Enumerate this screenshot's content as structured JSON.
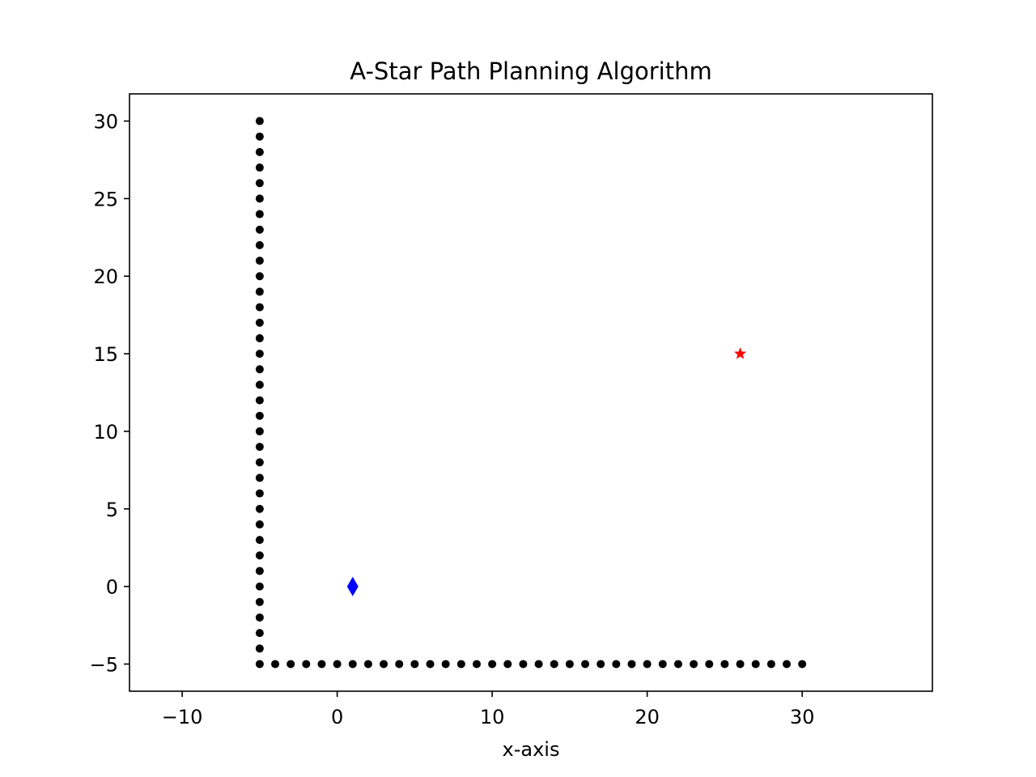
{
  "chart_data": {
    "type": "scatter",
    "title": "A-Star Path Planning Algorithm",
    "xlabel": "x-axis",
    "ylabel": "",
    "xlim": [
      -13.4,
      38.4
    ],
    "ylim": [
      -6.75,
      31.75
    ],
    "x_ticks": [
      -10,
      0,
      10,
      20,
      30
    ],
    "y_ticks": [
      -5,
      0,
      5,
      10,
      15,
      20,
      25,
      30
    ],
    "x_tick_labels": [
      "−10",
      "0",
      "10",
      "20",
      "30"
    ],
    "y_tick_labels": [
      "−5",
      "0",
      "5",
      "10",
      "15",
      "20",
      "25",
      "30"
    ],
    "grid": false,
    "series": [
      {
        "role": "obstacles",
        "marker": "circle",
        "color": "#000000",
        "points": [
          [
            -5,
            -5
          ],
          [
            -5,
            -4
          ],
          [
            -5,
            -3
          ],
          [
            -5,
            -2
          ],
          [
            -5,
            -1
          ],
          [
            -5,
            0
          ],
          [
            -5,
            1
          ],
          [
            -5,
            2
          ],
          [
            -5,
            3
          ],
          [
            -5,
            4
          ],
          [
            -5,
            5
          ],
          [
            -5,
            6
          ],
          [
            -5,
            7
          ],
          [
            -5,
            8
          ],
          [
            -5,
            9
          ],
          [
            -5,
            10
          ],
          [
            -5,
            11
          ],
          [
            -5,
            12
          ],
          [
            -5,
            13
          ],
          [
            -5,
            14
          ],
          [
            -5,
            15
          ],
          [
            -5,
            16
          ],
          [
            -5,
            17
          ],
          [
            -5,
            18
          ],
          [
            -5,
            19
          ],
          [
            -5,
            20
          ],
          [
            -5,
            21
          ],
          [
            -5,
            22
          ],
          [
            -5,
            23
          ],
          [
            -5,
            24
          ],
          [
            -5,
            25
          ],
          [
            -5,
            26
          ],
          [
            -5,
            27
          ],
          [
            -5,
            28
          ],
          [
            -5,
            29
          ],
          [
            -5,
            30
          ],
          [
            -4,
            -5
          ],
          [
            -3,
            -5
          ],
          [
            -2,
            -5
          ],
          [
            -1,
            -5
          ],
          [
            0,
            -5
          ],
          [
            1,
            -5
          ],
          [
            2,
            -5
          ],
          [
            3,
            -5
          ],
          [
            4,
            -5
          ],
          [
            5,
            -5
          ],
          [
            6,
            -5
          ],
          [
            7,
            -5
          ],
          [
            8,
            -5
          ],
          [
            9,
            -5
          ],
          [
            10,
            -5
          ],
          [
            11,
            -5
          ],
          [
            12,
            -5
          ],
          [
            13,
            -5
          ],
          [
            14,
            -5
          ],
          [
            15,
            -5
          ],
          [
            16,
            -5
          ],
          [
            17,
            -5
          ],
          [
            18,
            -5
          ],
          [
            19,
            -5
          ],
          [
            20,
            -5
          ],
          [
            21,
            -5
          ],
          [
            22,
            -5
          ],
          [
            23,
            -5
          ],
          [
            24,
            -5
          ],
          [
            25,
            -5
          ],
          [
            26,
            -5
          ],
          [
            27,
            -5
          ],
          [
            28,
            -5
          ],
          [
            29,
            -5
          ],
          [
            30,
            -5
          ]
        ]
      },
      {
        "role": "start",
        "marker": "diamond",
        "color": "#0000ff",
        "points": [
          [
            1,
            0
          ]
        ]
      },
      {
        "role": "goal",
        "marker": "star",
        "color": "#ff0000",
        "points": [
          [
            26,
            15
          ]
        ]
      }
    ]
  }
}
